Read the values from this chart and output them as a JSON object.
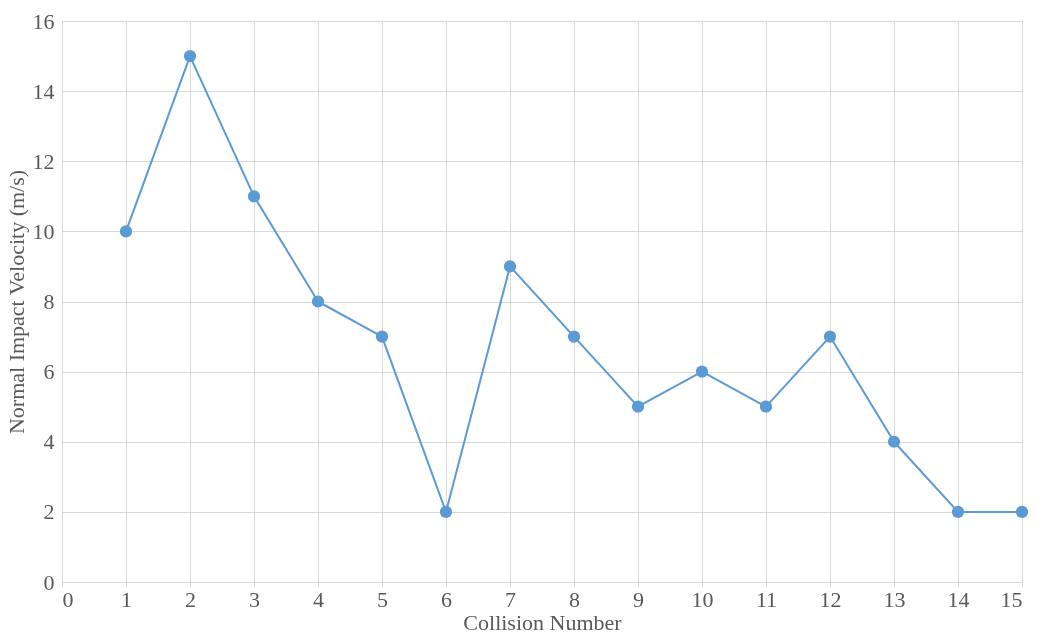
{
  "chart_data": {
    "type": "line",
    "xlabel": "Collision Number",
    "ylabel": "Normal Impact Velocity (m/s)",
    "x": [
      1,
      2,
      3,
      4,
      5,
      6,
      7,
      8,
      9,
      10,
      11,
      12,
      13,
      14,
      15
    ],
    "series": [
      {
        "color": "#5b9bd5",
        "values": [
          10,
          15,
          11,
          8,
          7,
          2,
          9,
          7,
          5,
          6,
          5,
          7,
          4,
          2,
          2
        ]
      }
    ],
    "xlim": [
      0,
      15
    ],
    "xticks": [
      0,
      1,
      2,
      3,
      4,
      5,
      6,
      7,
      8,
      9,
      10,
      11,
      12,
      13,
      14,
      15
    ],
    "ylim": [
      0,
      16
    ],
    "yticks": [
      0,
      2,
      4,
      6,
      8,
      10,
      12,
      14,
      16
    ],
    "grid": true,
    "marker": "circle",
    "line_style": "solid"
  }
}
